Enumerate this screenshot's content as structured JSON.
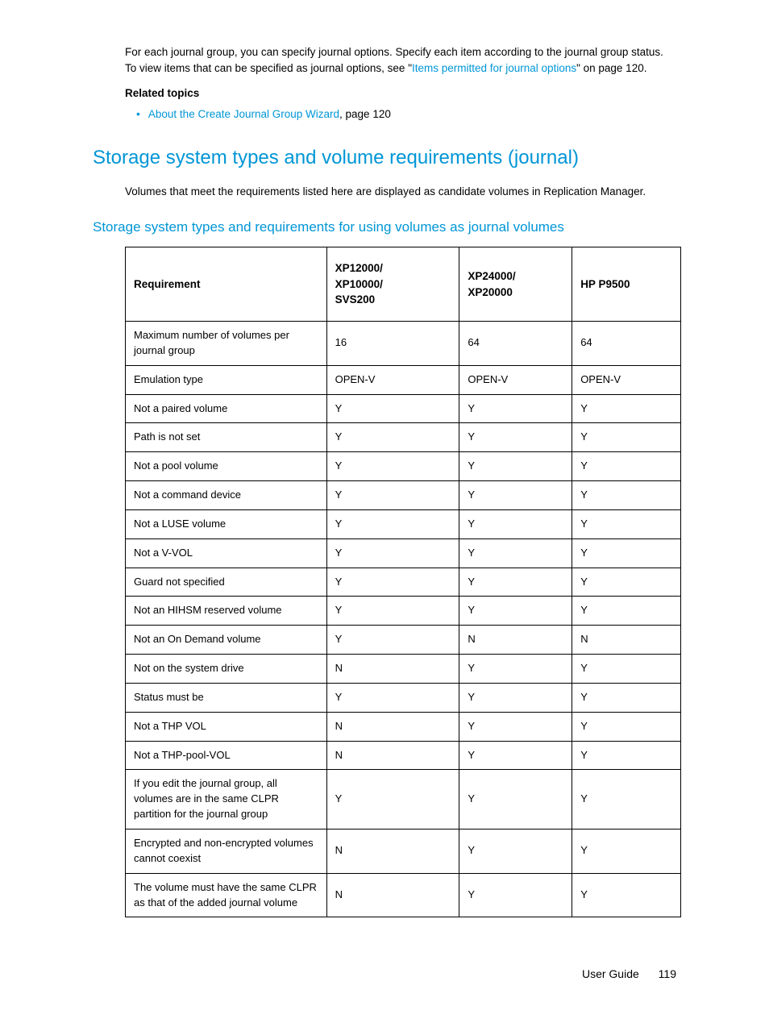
{
  "intro": {
    "part1": "For each journal group, you can specify journal options. Specify each item according to the journal group status. To view items that can be specified as journal options, see \"",
    "link1": "Items permitted for journal options",
    "part2": "\" on page 120."
  },
  "related": {
    "heading": "Related topics",
    "link": "About the Create Journal Group Wizard",
    "suffix": ", page 120"
  },
  "h1": "Storage system types and volume requirements (journal)",
  "h1_body": "Volumes that meet the requirements listed here are displayed as candidate volumes in Replication Manager.",
  "h2": "Storage system types and requirements for using volumes as journal volumes",
  "table": {
    "headers": [
      "Requirement",
      "XP12000/\nXP10000/\nSVS200",
      "XP24000/\nXP20000",
      "HP P9500"
    ],
    "rows": [
      [
        "Maximum number of volumes per journal group",
        "16",
        "64",
        "64"
      ],
      [
        "Emulation type",
        "OPEN-V",
        "OPEN-V",
        "OPEN-V"
      ],
      [
        "Not a paired volume",
        "Y",
        "Y",
        "Y"
      ],
      [
        "Path is not set",
        "Y",
        "Y",
        "Y"
      ],
      [
        "Not a pool volume",
        "Y",
        "Y",
        "Y"
      ],
      [
        "Not a command device",
        "Y",
        "Y",
        "Y"
      ],
      [
        "Not a LUSE volume",
        "Y",
        "Y",
        "Y"
      ],
      [
        "Not a V-VOL",
        "Y",
        "Y",
        "Y"
      ],
      [
        "Guard not specified",
        "Y",
        "Y",
        "Y"
      ],
      [
        "Not an HIHSM reserved volume",
        "Y",
        "Y",
        "Y"
      ],
      [
        "Not an On Demand volume",
        "Y",
        "N",
        "N"
      ],
      [
        "Not on the system drive",
        "N",
        "Y",
        "Y"
      ],
      [
        "Status must be",
        "Y",
        "Y",
        "Y"
      ],
      [
        "Not a THP VOL",
        "N",
        "Y",
        "Y"
      ],
      [
        "Not a THP-pool-VOL",
        "N",
        "Y",
        "Y"
      ],
      [
        "If you edit the journal group, all volumes are in the same CLPR partition for the journal group",
        "Y",
        "Y",
        "Y"
      ],
      [
        "Encrypted and non-encrypted volumes cannot coexist",
        "N",
        "Y",
        "Y"
      ],
      [
        "The volume must have the same CLPR as that of the added journal volume",
        "N",
        "Y",
        "Y"
      ]
    ]
  },
  "footer": {
    "label": "User Guide",
    "page": "119"
  }
}
